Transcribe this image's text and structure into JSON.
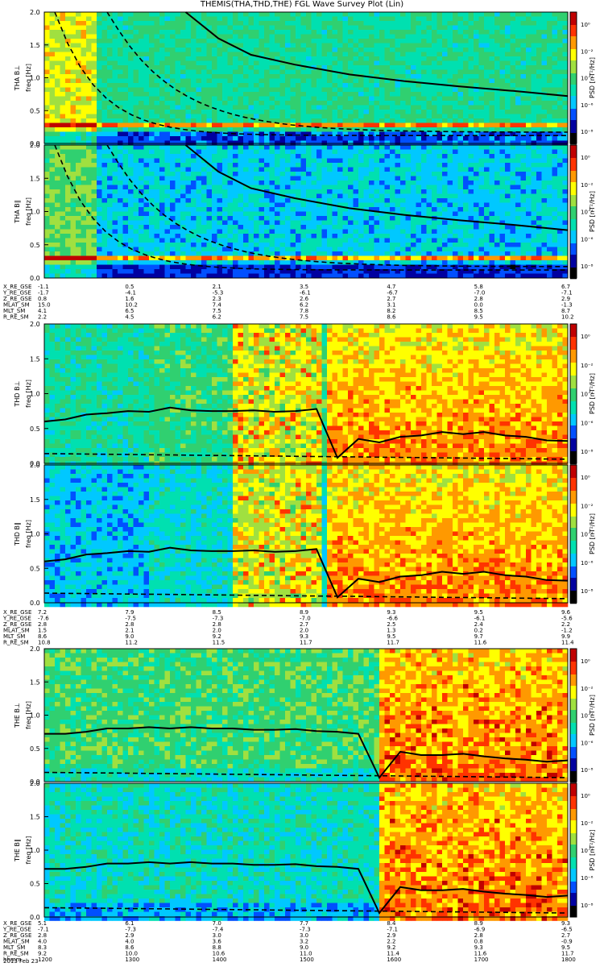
{
  "title": "THEMIS(THA,THD,THE) FGL Wave Survey Plot (Lin)",
  "chart_data": {
    "type": "heatmap",
    "ylim": [
      0,
      2.0
    ],
    "yticks": [
      "0.0",
      "0.5",
      "1.0",
      "1.5",
      "2.0"
    ],
    "ylabel": "freq [Hz]",
    "colorbar_label": "PSD [nT²/Hz]",
    "colorbar_ticks": [
      "10⁰",
      "10⁻²",
      "10⁻⁴",
      "10⁻⁶",
      "10⁻⁸"
    ],
    "colormap": [
      "#000000",
      "#0000a0",
      "#0050ff",
      "#00c8ff",
      "#00e0b0",
      "#30d070",
      "#a0e040",
      "#ffff00",
      "#ff9900",
      "#ff3300",
      "#c00000",
      "#7a0000"
    ],
    "panels": [
      {
        "label": "THA B⊥",
        "ylabel_text": "THA B⊥"
      },
      {
        "label": "THA B∥",
        "ylabel_text": "THA B∥"
      },
      {
        "label": "THD B⊥",
        "ylabel_text": "THD B⊥"
      },
      {
        "label": "THD B∥",
        "ylabel_text": "THD B∥"
      },
      {
        "label": "THE B⊥",
        "ylabel_text": "THE B⊥"
      },
      {
        "label": "THE B∥",
        "ylabel_text": "THE B∥"
      }
    ],
    "gyro_lines": {
      "tha": {
        "x": [
          0.04,
          0.08,
          0.12,
          0.16,
          0.2,
          0.24,
          0.3,
          0.36,
          0.42,
          0.5,
          0.6,
          0.7,
          0.8,
          0.9,
          1.0
        ],
        "fce_solid": [
          null,
          null,
          null,
          null,
          null,
          null,
          2.0,
          1.6,
          1.35,
          1.2,
          1.05,
          0.95,
          0.87,
          0.8,
          0.72
        ]
      },
      "thd_solid": [
        0.6,
        0.63,
        0.7,
        0.72,
        0.75,
        0.74,
        0.8,
        0.76,
        0.75,
        0.75,
        0.76,
        0.74,
        0.75,
        0.78,
        0.08,
        0.35,
        0.3,
        0.38,
        0.4,
        0.45,
        0.42,
        0.45,
        0.4,
        0.38,
        0.33,
        0.32
      ],
      "the_solid": [
        0.72,
        0.72,
        0.75,
        0.8,
        0.8,
        0.82,
        0.8,
        0.82,
        0.8,
        0.8,
        0.78,
        0.78,
        0.79,
        0.76,
        0.75,
        0.72,
        0.06,
        0.45,
        0.4,
        0.4,
        0.42,
        0.38,
        0.35,
        0.33,
        0.3,
        0.32
      ]
    },
    "ephemeris": [
      {
        "rows": [
          "X_RE_GSE",
          "Y_RE_GSE",
          "Z_RE_GSE",
          "MLAT_SM",
          "MLT_SM",
          "R_RE_SM"
        ],
        "columns": [
          [
            "-1.1",
            "-1.7",
            "0.8",
            "15.0",
            "4.1",
            "2.2"
          ],
          [
            "0.5",
            "-4.1",
            "1.6",
            "10.2",
            "6.5",
            "4.5"
          ],
          [
            "2.1",
            "-5.3",
            "2.3",
            "7.4",
            "7.5",
            "6.2"
          ],
          [
            "3.5",
            "-6.1",
            "2.6",
            "6.2",
            "7.8",
            "7.5"
          ],
          [
            "4.7",
            "-6.7",
            "2.7",
            "3.1",
            "8.2",
            "8.6"
          ],
          [
            "5.8",
            "-7.0",
            "2.8",
            "0.0",
            "8.5",
            "9.5"
          ],
          [
            "6.7",
            "-7.1",
            "2.9",
            "-1.3",
            "8.7",
            "10.2"
          ]
        ]
      },
      {
        "rows": [
          "X_RE_GSE",
          "Y_RE_GSE",
          "Z_RE_GSE",
          "MLAT_SM",
          "MLT_SM",
          "R_RE_SM"
        ],
        "columns": [
          [
            "7.2",
            "-7.6",
            "2.8",
            "1.5",
            "8.6",
            "10.8"
          ],
          [
            "7.9",
            "-7.5",
            "2.8",
            "2.1",
            "9.0",
            "11.2"
          ],
          [
            "8.5",
            "-7.3",
            "2.8",
            "2.0",
            "9.2",
            "11.5"
          ],
          [
            "8.9",
            "-7.0",
            "2.7",
            "2.0",
            "9.3",
            "11.7"
          ],
          [
            "9.3",
            "-6.6",
            "2.5",
            "1.3",
            "9.5",
            "11.7"
          ],
          [
            "9.5",
            "-6.1",
            "2.4",
            "0.2",
            "9.7",
            "11.6"
          ],
          [
            "9.6",
            "-5.6",
            "2.2",
            "-1.2",
            "9.9",
            "11.4"
          ]
        ]
      },
      {
        "rows": [
          "X_RE_GSE",
          "Y_RE_GSE",
          "Z_RE_GSE",
          "MLAT_SM",
          "MLT_SM",
          "R_RE_SM",
          "hhmm"
        ],
        "columns": [
          [
            "5.1",
            "-7.1",
            "2.8",
            "4.0",
            "8.3",
            "9.2",
            "1200"
          ],
          [
            "6.1",
            "-7.3",
            "2.9",
            "4.0",
            "8.6",
            "10.0",
            "1300"
          ],
          [
            "7.0",
            "-7.4",
            "3.0",
            "3.6",
            "8.8",
            "10.6",
            "1400"
          ],
          [
            "7.7",
            "-7.3",
            "3.0",
            "3.2",
            "9.0",
            "11.0",
            "1500"
          ],
          [
            "8.4",
            "-7.1",
            "2.9",
            "2.2",
            "9.2",
            "11.4",
            "1600"
          ],
          [
            "8.9",
            "-6.9",
            "2.8",
            "0.8",
            "9.3",
            "11.6",
            "1700"
          ],
          [
            "9.3",
            "-6.5",
            "2.7",
            "-0.9",
            "9.5",
            "11.7",
            "1800"
          ]
        ]
      }
    ],
    "date": "2013 Feb 23"
  }
}
